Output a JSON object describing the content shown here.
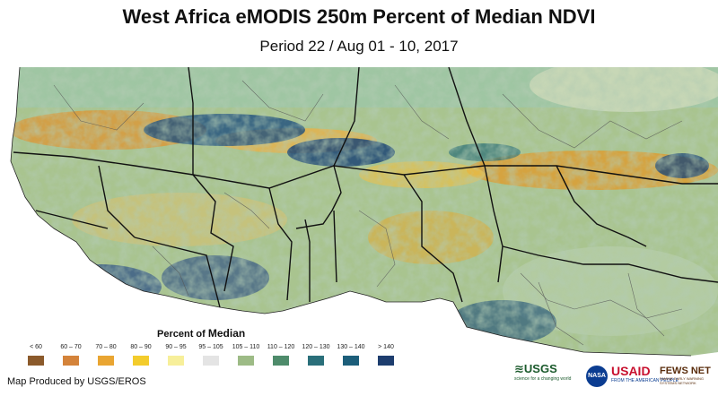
{
  "title": "West Africa eMODIS 250m Percent of Median NDVI",
  "subtitle": "Period 22 / Aug 01 - 10, 2017",
  "legend": {
    "title_part1": "Percent of ",
    "title_part2": "Median",
    "items": [
      {
        "label": "< 60",
        "color": "#8b5a2b"
      },
      {
        "label": "60 – 70",
        "color": "#d4833a"
      },
      {
        "label": "70 – 80",
        "color": "#e9a532"
      },
      {
        "label": "80 – 90",
        "color": "#f3cc2c"
      },
      {
        "label": "90 – 95",
        "color": "#f7ef9a"
      },
      {
        "label": "95 – 105",
        "color": "#e4e4e4"
      },
      {
        "label": "105 – 110",
        "color": "#9dbb86"
      },
      {
        "label": "110 – 120",
        "color": "#4e8b6b"
      },
      {
        "label": "120 – 130",
        "color": "#2a6f7a"
      },
      {
        "label": "130 – 140",
        "color": "#1c5e7a"
      },
      {
        "label": "> 140",
        "color": "#1d3d6e"
      }
    ]
  },
  "credit": "Map Produced by USGS/EROS",
  "logos": {
    "usgs": "≋USGS",
    "usgs_tagline": "science for a changing world",
    "nasa": "NASA",
    "usaid": "USAID",
    "usaid_tagline": "FROM THE AMERICAN PEOPLE",
    "fews": "FEWS NET",
    "fews_tagline": "FAMINE EARLY WARNING SYSTEMS NETWORK"
  }
}
